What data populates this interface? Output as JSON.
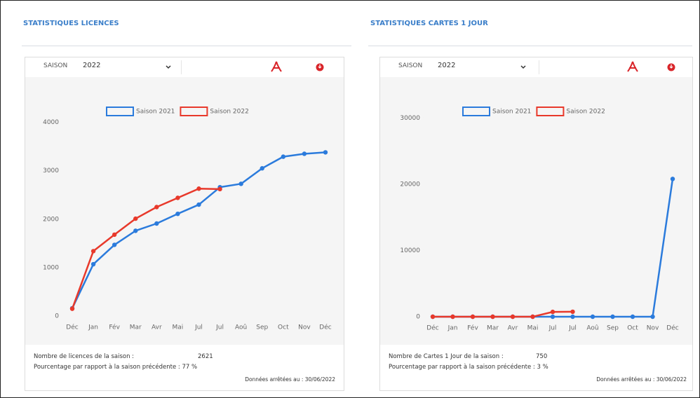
{
  "panels": [
    {
      "title": "STATISTIQUES LICENCES",
      "season_label": "SAISON",
      "season_value": "2022",
      "count_label": "Nombre de licences de la saison :",
      "count_value": 2621,
      "percent_text": "Pourcentage par rapport à la saison précédente : 77 %",
      "date_text": "Données arrêtées au : 30/06/2022"
    },
    {
      "title": "STATISTIQUES CARTES 1 JOUR",
      "season_label": "SAISON",
      "season_value": "2022",
      "count_label": "Nombre de Cartes 1 Jour de la saison :",
      "count_value": 750,
      "percent_text": "Pourcentage par rapport à la saison précédente : 3 %",
      "date_text": "Données arrêtées au : 30/06/2022"
    }
  ],
  "chart_data": [
    {
      "type": "line",
      "categories": [
        "Déc",
        "Jan",
        "Fév",
        "Mar",
        "Avr",
        "Mai",
        "Jul",
        "Jul",
        "Aoû",
        "Sep",
        "Oct",
        "Nov",
        "Déc"
      ],
      "series": [
        {
          "name": "Saison 2021",
          "color": "#2b7bdc",
          "values": [
            160,
            1070,
            1470,
            1760,
            1910,
            2110,
            2300,
            2660,
            2730,
            3050,
            3290,
            3350,
            3380
          ]
        },
        {
          "name": "Saison 2022",
          "color": "#e8392b",
          "values": [
            150,
            1340,
            1680,
            2010,
            2250,
            2440,
            2630,
            2621,
            null,
            null,
            null,
            null,
            null
          ]
        }
      ],
      "ylim": [
        0,
        4500
      ],
      "yticks": [
        0,
        1000,
        2000,
        3000,
        4000
      ],
      "legend": "top"
    },
    {
      "type": "line",
      "categories": [
        "Déc",
        "Jan",
        "Fév",
        "Mar",
        "Avr",
        "Mai",
        "Jul",
        "Jul",
        "Aoû",
        "Sep",
        "Oct",
        "Nov",
        "Déc"
      ],
      "series": [
        {
          "name": "Saison 2021",
          "color": "#2b7bdc",
          "values": [
            0,
            0,
            0,
            0,
            0,
            0,
            0,
            0,
            0,
            0,
            0,
            0,
            20800
          ]
        },
        {
          "name": "Saison 2022",
          "color": "#e8392b",
          "values": [
            0,
            0,
            0,
            0,
            0,
            0,
            730,
            750,
            null,
            null,
            null,
            null,
            null
          ]
        }
      ],
      "ylim": [
        0,
        33000
      ],
      "yticks": [
        0,
        10000,
        20000,
        30000
      ],
      "legend": "top"
    }
  ]
}
